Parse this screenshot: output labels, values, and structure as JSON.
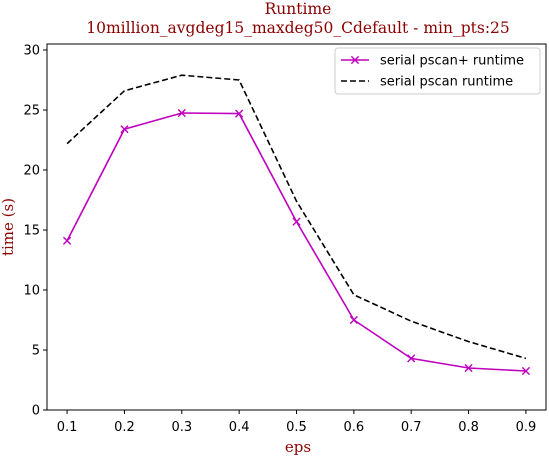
{
  "chart_data": {
    "type": "line",
    "title": "Runtime",
    "subtitle": "10million_avgdeg15_maxdeg50_Cdefault - min_pts:25",
    "xlabel": "eps",
    "ylabel": "time (s)",
    "x": [
      0.1,
      0.2,
      0.3,
      0.4,
      0.5,
      0.6,
      0.7,
      0.8,
      0.9
    ],
    "x_ticks": [
      "0.1",
      "0.2",
      "0.3",
      "0.4",
      "0.5",
      "0.6",
      "0.7",
      "0.8",
      "0.9"
    ],
    "xlim": [
      0.065,
      0.935
    ],
    "ylim": [
      0,
      30.5
    ],
    "y_ticks": [
      "0",
      "5",
      "10",
      "15",
      "20",
      "25",
      "30"
    ],
    "grid": false,
    "legend_position": "top-right",
    "series": [
      {
        "name": "serial pscan+ runtime",
        "values": [
          14.1,
          23.4,
          24.75,
          24.7,
          15.7,
          7.5,
          4.3,
          3.5,
          3.25
        ],
        "color": "#bf00bf",
        "line_style": "solid",
        "marker": "x"
      },
      {
        "name": "serial pscan runtime",
        "values": [
          22.2,
          26.6,
          27.9,
          27.5,
          17.4,
          9.6,
          7.4,
          5.7,
          4.3
        ],
        "color": "#000000",
        "line_style": "dashed",
        "marker": "none"
      }
    ]
  }
}
